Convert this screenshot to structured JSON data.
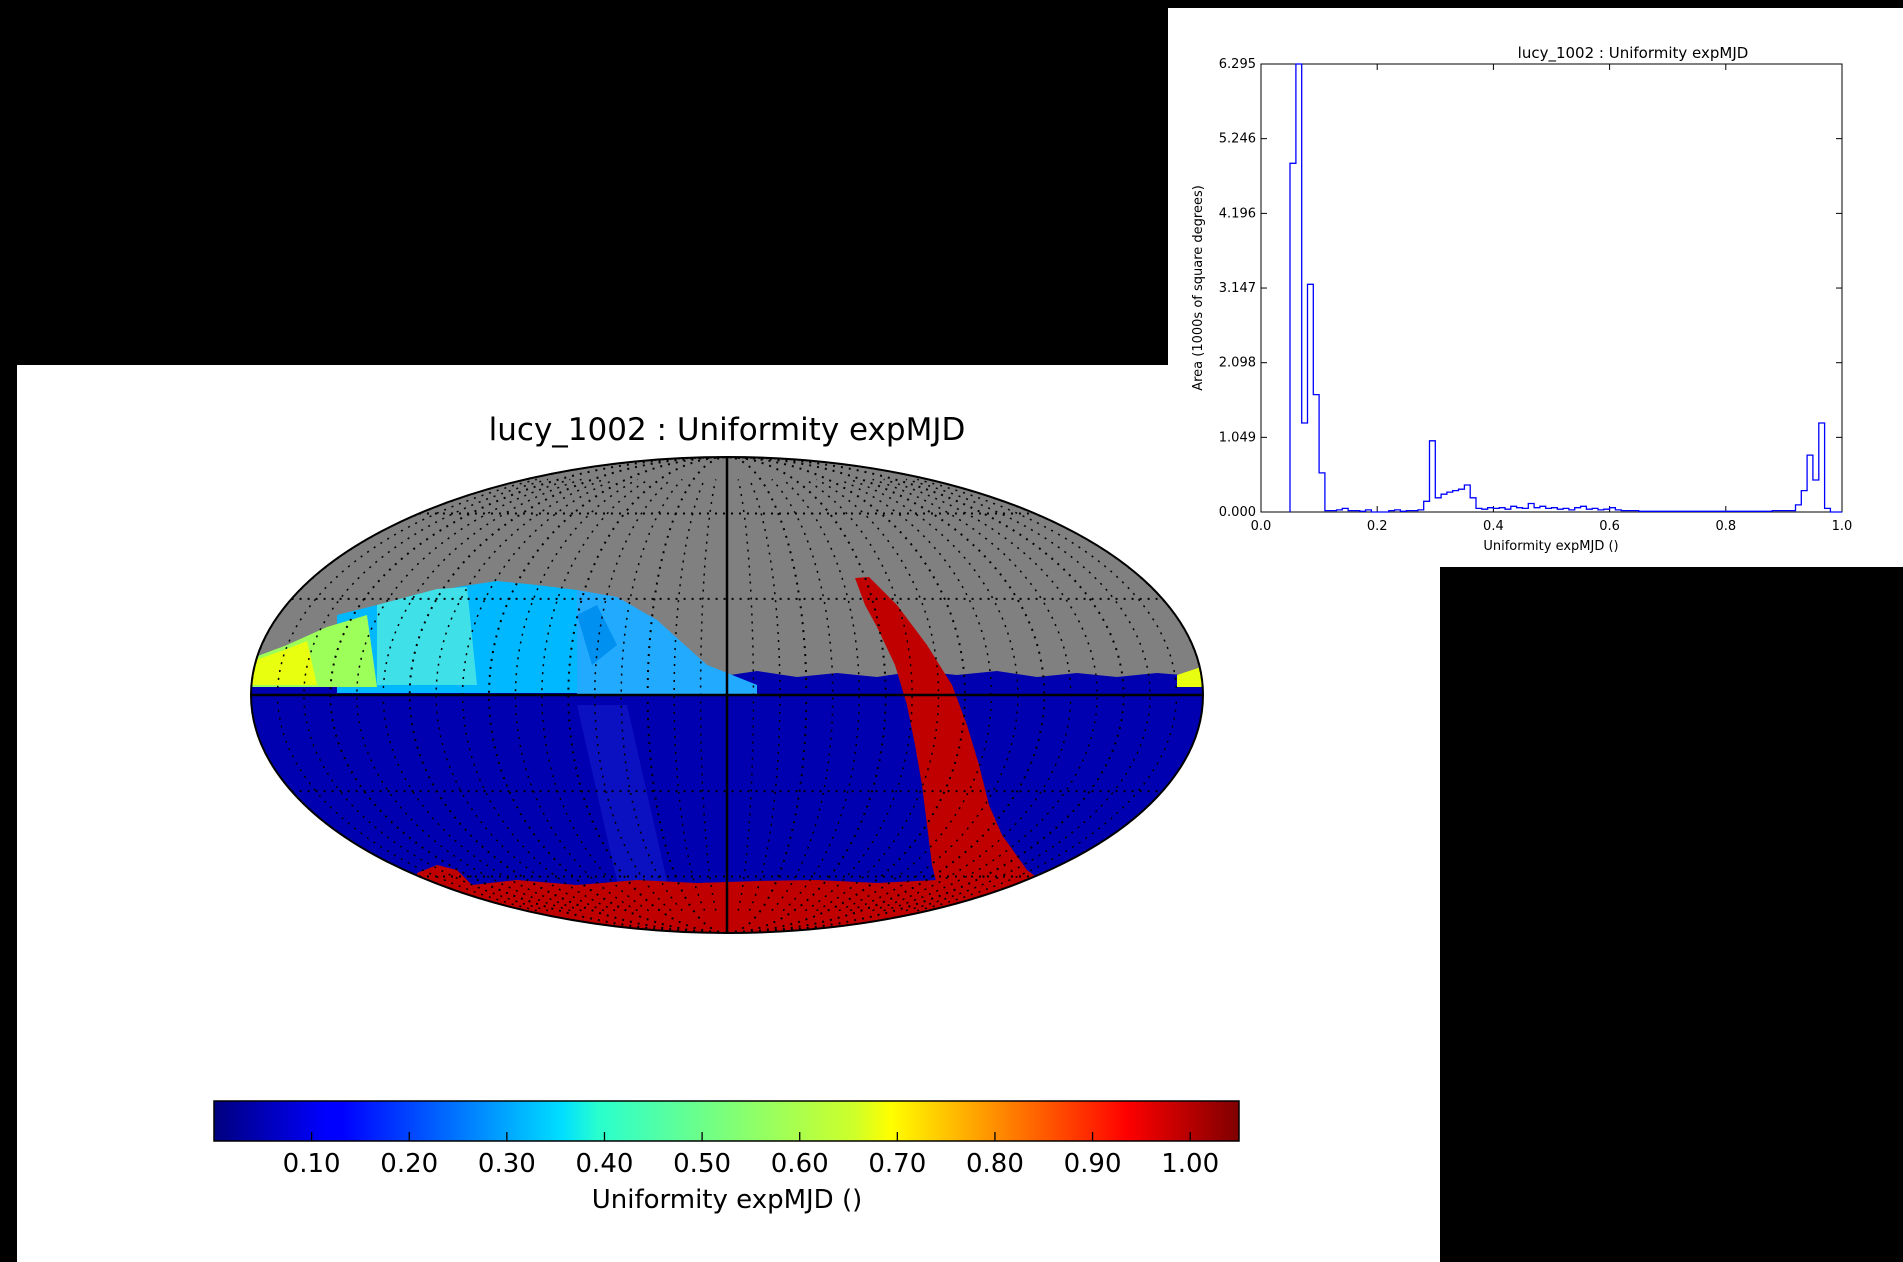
{
  "chart_data": [
    {
      "type": "heatmap",
      "projection": "mollweide",
      "title": "lucy_1002  : Uniformity expMJD",
      "colormap": "jet",
      "colorbar": {
        "label": "Uniformity expMJD ()",
        "range": [
          0.0,
          1.05
        ],
        "ticks": [
          "0.10",
          "0.20",
          "0.30",
          "0.40",
          "0.50",
          "0.60",
          "0.70",
          "0.80",
          "0.90",
          "1.00"
        ],
        "tick_values": [
          0.1,
          0.2,
          0.3,
          0.4,
          0.5,
          0.6,
          0.7,
          0.8,
          0.9,
          1.0
        ],
        "placement": "bottom"
      },
      "grid": true,
      "no_data_color": "#808080"
    },
    {
      "type": "line",
      "style": "step",
      "title": "lucy_1002  : Uniformity expMJD",
      "xlabel": "Uniformity expMJD ()",
      "ylabel": "Area (1000s of square degrees)",
      "xlim": [
        0.0,
        1.0
      ],
      "ylim": [
        0.0,
        6.295
      ],
      "xticks": [
        "0.0",
        "0.2",
        "0.4",
        "0.6",
        "0.8",
        "1.0"
      ],
      "xtick_values": [
        0.0,
        0.2,
        0.4,
        0.6,
        0.8,
        1.0
      ],
      "yticks": [
        "0.000",
        "1.049",
        "2.098",
        "3.147",
        "4.196",
        "5.246",
        "6.295"
      ],
      "ytick_values": [
        0.0,
        1.049,
        2.098,
        3.147,
        4.196,
        5.246,
        6.295
      ],
      "line_color": "#0000ff",
      "x": [
        0.05,
        0.06,
        0.07,
        0.08,
        0.09,
        0.1,
        0.11,
        0.12,
        0.13,
        0.14,
        0.15,
        0.16,
        0.17,
        0.18,
        0.19,
        0.2,
        0.21,
        0.22,
        0.23,
        0.24,
        0.25,
        0.26,
        0.27,
        0.28,
        0.29,
        0.3,
        0.31,
        0.32,
        0.33,
        0.34,
        0.35,
        0.36,
        0.37,
        0.38,
        0.39,
        0.4,
        0.41,
        0.42,
        0.43,
        0.44,
        0.45,
        0.46,
        0.47,
        0.48,
        0.49,
        0.5,
        0.51,
        0.52,
        0.53,
        0.54,
        0.55,
        0.56,
        0.57,
        0.58,
        0.59,
        0.6,
        0.61,
        0.62,
        0.63,
        0.64,
        0.65,
        0.66,
        0.67,
        0.68,
        0.69,
        0.7,
        0.71,
        0.72,
        0.73,
        0.74,
        0.75,
        0.76,
        0.77,
        0.78,
        0.79,
        0.8,
        0.81,
        0.82,
        0.83,
        0.84,
        0.85,
        0.86,
        0.87,
        0.88,
        0.89,
        0.9,
        0.91,
        0.92,
        0.93,
        0.94,
        0.95,
        0.96,
        0.97,
        0.98,
        0.99
      ],
      "y": [
        4.9,
        6.3,
        1.25,
        3.2,
        1.65,
        0.55,
        0.02,
        0.02,
        0.03,
        0.05,
        0.02,
        0.02,
        0.01,
        0.03,
        0.0,
        0.0,
        0.0,
        0.02,
        0.03,
        0.01,
        0.02,
        0.02,
        0.03,
        0.15,
        1.0,
        0.2,
        0.25,
        0.28,
        0.3,
        0.32,
        0.38,
        0.2,
        0.05,
        0.04,
        0.06,
        0.05,
        0.06,
        0.04,
        0.08,
        0.06,
        0.05,
        0.12,
        0.06,
        0.08,
        0.05,
        0.06,
        0.04,
        0.05,
        0.03,
        0.06,
        0.08,
        0.04,
        0.05,
        0.03,
        0.04,
        0.06,
        0.03,
        0.02,
        0.02,
        0.02,
        0.01,
        0.01,
        0.01,
        0.01,
        0.01,
        0.01,
        0.01,
        0.01,
        0.01,
        0.01,
        0.01,
        0.01,
        0.01,
        0.01,
        0.01,
        0.01,
        0.01,
        0.01,
        0.01,
        0.01,
        0.01,
        0.01,
        0.01,
        0.02,
        0.02,
        0.02,
        0.02,
        0.1,
        0.3,
        0.8,
        0.45,
        1.25,
        0.05,
        0.0,
        0.0
      ]
    }
  ]
}
